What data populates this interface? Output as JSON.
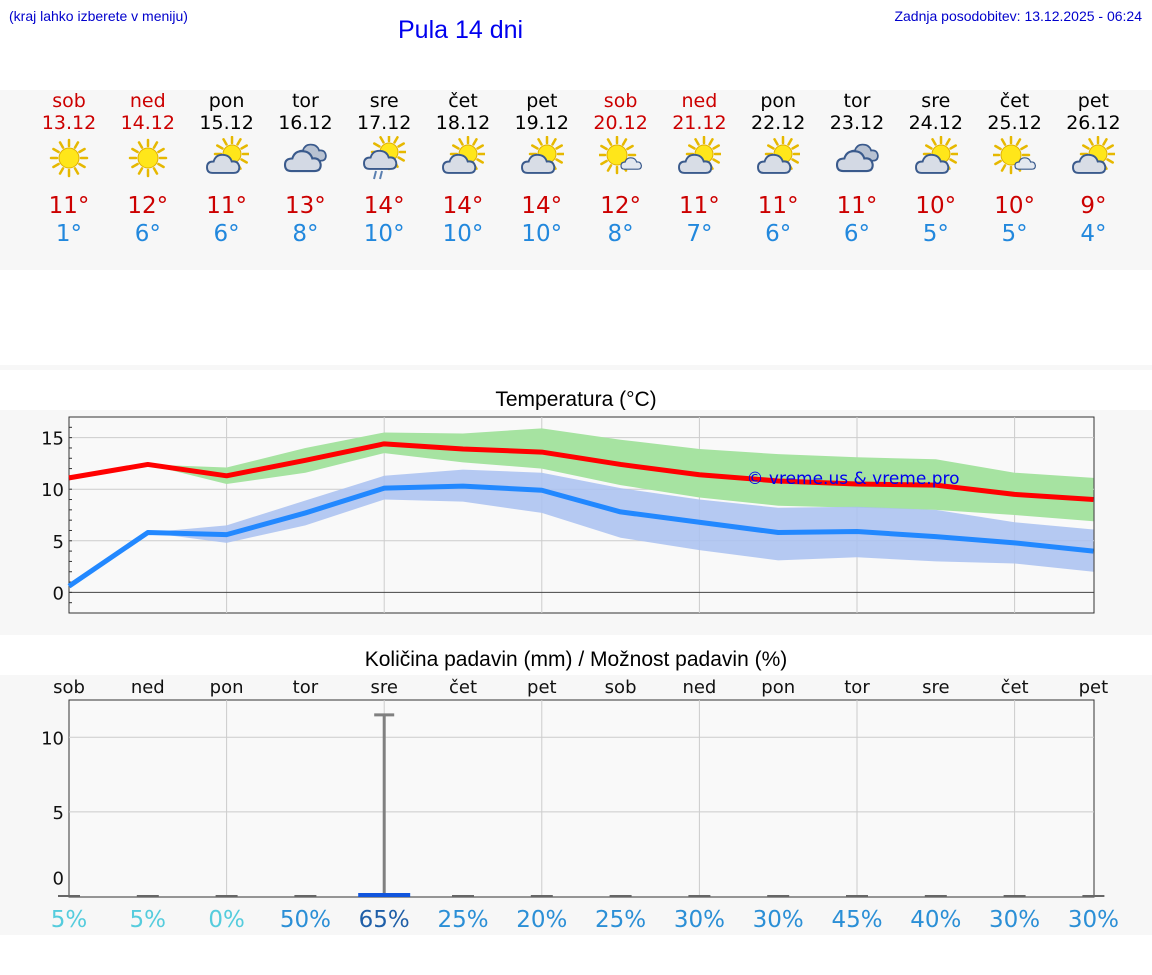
{
  "header": {
    "hint": "(kraj lahko izberete v meniju)",
    "title": "Pula 14 dni",
    "updated": "Zadnja posodobitev: 13.12.2025 - 06:24"
  },
  "forecast": [
    {
      "day": "sob",
      "date": "13.12",
      "icon": "sun-icon",
      "max": "11°",
      "min": "1°",
      "weekend": true
    },
    {
      "day": "ned",
      "date": "14.12",
      "icon": "sun-icon",
      "max": "12°",
      "min": "6°",
      "weekend": true
    },
    {
      "day": "pon",
      "date": "15.12",
      "icon": "partly-cloudy-icon",
      "max": "11°",
      "min": "6°",
      "weekend": false
    },
    {
      "day": "tor",
      "date": "16.12",
      "icon": "cloudy-icon",
      "max": "13°",
      "min": "8°",
      "weekend": false
    },
    {
      "day": "sre",
      "date": "17.12",
      "icon": "rain-icon",
      "max": "14°",
      "min": "10°",
      "weekend": false
    },
    {
      "day": "čet",
      "date": "18.12",
      "icon": "partly-cloudy-icon",
      "max": "14°",
      "min": "10°",
      "weekend": false
    },
    {
      "day": "pet",
      "date": "19.12",
      "icon": "partly-cloudy-icon",
      "max": "14°",
      "min": "10°",
      "weekend": false
    },
    {
      "day": "sob",
      "date": "20.12",
      "icon": "sun-small-cloud-icon",
      "max": "12°",
      "min": "8°",
      "weekend": true
    },
    {
      "day": "ned",
      "date": "21.12",
      "icon": "partly-cloudy-icon",
      "max": "11°",
      "min": "7°",
      "weekend": true
    },
    {
      "day": "pon",
      "date": "22.12",
      "icon": "partly-cloudy-icon",
      "max": "11°",
      "min": "6°",
      "weekend": false
    },
    {
      "day": "tor",
      "date": "23.12",
      "icon": "cloudy-icon",
      "max": "11°",
      "min": "6°",
      "weekend": false
    },
    {
      "day": "sre",
      "date": "24.12",
      "icon": "partly-cloudy-icon",
      "max": "10°",
      "min": "5°",
      "weekend": false
    },
    {
      "day": "čet",
      "date": "25.12",
      "icon": "sun-small-cloud-icon",
      "max": "10°",
      "min": "5°",
      "weekend": false
    },
    {
      "day": "pet",
      "date": "26.12",
      "icon": "partly-cloudy-icon",
      "max": "9°",
      "min": "4°",
      "weekend": false
    }
  ],
  "colors": {
    "weekend": "#cc0000",
    "weekday": "#000000",
    "max": "#ff0000",
    "min": "#2288ff",
    "maxBand": "#a6e3a1",
    "minBand": "#a9c1f1"
  },
  "chart_data": [
    {
      "type": "line",
      "title": "Temperatura (°C)",
      "watermark": "© vreme.us & vreme.pro",
      "x": [
        0,
        1,
        2,
        3,
        4,
        5,
        6,
        7,
        8,
        9,
        10,
        11,
        12,
        13
      ],
      "ylim": [
        -2,
        17
      ],
      "yticks": [
        0,
        5,
        10,
        15
      ],
      "series": [
        {
          "name": "max",
          "values": [
            11.1,
            12.4,
            11.3,
            12.8,
            14.4,
            13.9,
            13.6,
            12.4,
            11.4,
            10.8,
            10.5,
            10.4,
            9.5,
            9.0
          ],
          "band_low": [
            11.1,
            12.4,
            10.5,
            11.6,
            13.5,
            12.6,
            12.0,
            10.4,
            9.2,
            8.4,
            8.2,
            8.0,
            7.5,
            6.9
          ],
          "band_high": [
            11.1,
            12.4,
            12.1,
            14.0,
            15.5,
            15.4,
            15.9,
            14.8,
            13.9,
            13.4,
            13.1,
            12.9,
            11.6,
            11.1
          ]
        },
        {
          "name": "min",
          "values": [
            0.6,
            5.8,
            5.6,
            7.7,
            10.1,
            10.3,
            9.9,
            7.8,
            6.8,
            5.8,
            5.9,
            5.4,
            4.8,
            4.0
          ],
          "band_low": [
            0.6,
            5.8,
            4.8,
            6.5,
            9.0,
            8.8,
            7.7,
            5.3,
            4.1,
            3.1,
            3.4,
            3.0,
            2.8,
            2.0
          ],
          "band_high": [
            0.6,
            5.8,
            6.5,
            8.9,
            11.3,
            11.9,
            11.6,
            10.1,
            9.0,
            8.2,
            8.3,
            8.0,
            6.8,
            6.1
          ]
        }
      ]
    },
    {
      "type": "bar",
      "title": "Količina padavin (mm) / Možnost padavin (%)",
      "categories": [
        "sob",
        "ned",
        "pon",
        "tor",
        "sre",
        "čet",
        "pet",
        "sob",
        "ned",
        "pon",
        "tor",
        "sre",
        "čet",
        "pet"
      ],
      "values": [
        0,
        0,
        0,
        0,
        0.2,
        0,
        0,
        0,
        0,
        0,
        0,
        0,
        0,
        0
      ],
      "error_high": [
        0,
        0,
        0,
        0,
        11.5,
        0,
        0,
        0,
        0,
        0,
        0,
        0,
        0,
        0
      ],
      "probability": [
        "5%",
        "5%",
        "0%",
        "50%",
        "65%",
        "25%",
        "20%",
        "25%",
        "30%",
        "30%",
        "45%",
        "40%",
        "30%",
        "30%"
      ],
      "probability_values": [
        5,
        5,
        0,
        50,
        65,
        25,
        20,
        25,
        30,
        30,
        45,
        40,
        30,
        30
      ],
      "ylim": [
        -0.7,
        12.5
      ],
      "yticks": [
        0,
        5,
        10
      ]
    }
  ]
}
